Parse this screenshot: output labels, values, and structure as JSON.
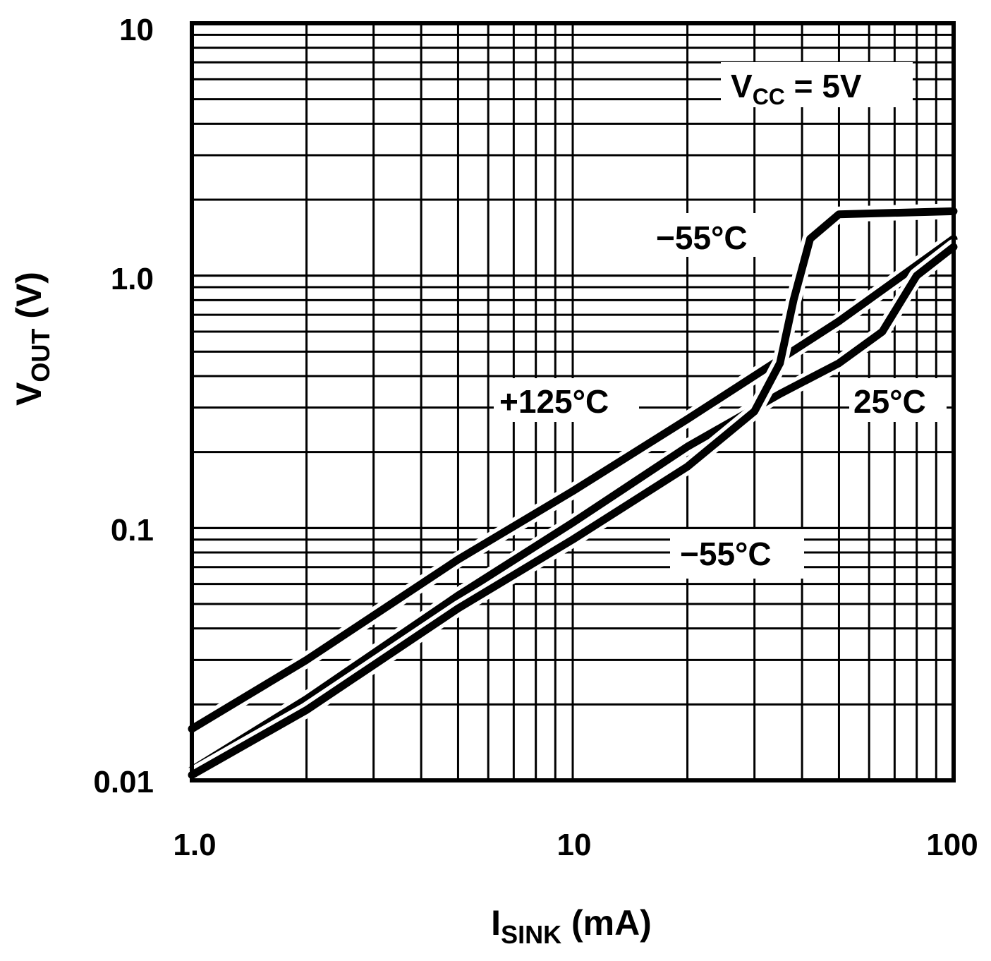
{
  "chart_data": {
    "type": "line",
    "x_scale": "log",
    "y_scale": "log",
    "xlim": [
      1,
      100
    ],
    "ylim": [
      0.01,
      10
    ],
    "x_tick_labels": [
      "1.0",
      "10",
      "100"
    ],
    "y_tick_labels": [
      "0.01",
      "0.1",
      "1.0",
      "10"
    ],
    "xlabel": {
      "main": "I",
      "sub": "SINK",
      "unit": " (mA)"
    },
    "ylabel": {
      "main": "V",
      "sub": "OUT",
      "unit": " (V)"
    },
    "grid": true,
    "annotations": {
      "condition": {
        "main": "V",
        "sub": "CC",
        "rest": " = 5V"
      },
      "minus55_upper": "−55°C",
      "plus125": "+125°C",
      "t25": "25°C",
      "minus55_lower": "−55°C"
    },
    "series": [
      {
        "name": "+125°C",
        "x": [
          1,
          2,
          5,
          10,
          20,
          50,
          100
        ],
        "y": [
          0.016,
          0.03,
          0.075,
          0.14,
          0.27,
          0.66,
          1.4
        ]
      },
      {
        "name": "25°C",
        "x": [
          1,
          2,
          5,
          10,
          20,
          35,
          50,
          65,
          80,
          100
        ],
        "y": [
          0.011,
          0.021,
          0.054,
          0.105,
          0.21,
          0.34,
          0.45,
          0.6,
          1.0,
          1.3
        ]
      },
      {
        "name": "−55°C",
        "x": [
          1,
          2,
          5,
          10,
          20,
          30,
          35,
          38,
          42,
          50,
          100
        ],
        "y": [
          0.0105,
          0.019,
          0.048,
          0.09,
          0.175,
          0.29,
          0.45,
          0.8,
          1.4,
          1.75,
          1.8
        ]
      }
    ]
  }
}
